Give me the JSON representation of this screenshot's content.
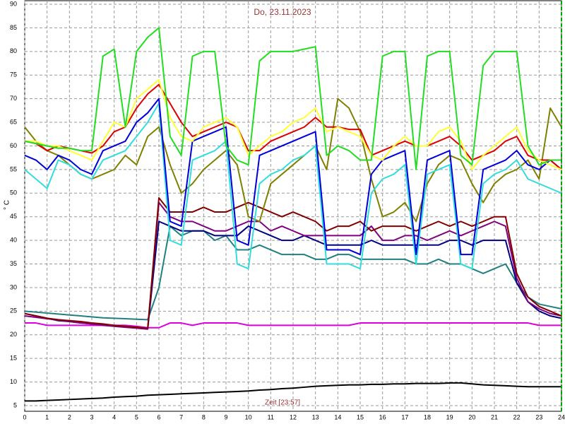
{
  "chart_data": {
    "type": "line",
    "title": "Do, 23.11.2023",
    "xlabel": "Zeit [23:57]",
    "ylabel": "° C",
    "x": [
      0,
      0.5,
      1,
      1.5,
      2,
      2.5,
      3,
      3.5,
      4,
      4.5,
      5,
      5.5,
      6,
      6.5,
      7,
      7.5,
      8,
      8.5,
      9,
      9.5,
      10,
      10.5,
      11,
      11.5,
      12,
      12.5,
      13,
      13.5,
      14,
      14.5,
      15,
      15.5,
      16,
      16.5,
      17,
      17.5,
      18,
      18.5,
      19,
      19.5,
      20,
      20.5,
      21,
      21.5,
      22,
      22.5,
      23,
      23.5,
      24
    ],
    "xlim": [
      0,
      24
    ],
    "xticks": [
      0,
      1,
      2,
      3,
      4,
      5,
      6,
      7,
      8,
      9,
      10,
      11,
      12,
      13,
      14,
      15,
      16,
      17,
      18,
      19,
      20,
      21,
      22,
      23,
      24
    ],
    "ylim": [
      5,
      90
    ],
    "yticks": [
      5,
      10,
      15,
      20,
      25,
      30,
      35,
      40,
      45,
      50,
      55,
      60,
      65,
      70,
      75,
      80,
      85,
      90
    ],
    "grid": true,
    "series": [
      {
        "color": "#000000",
        "values": [
          6,
          6,
          6.1,
          6.2,
          6.3,
          6.4,
          6.5,
          6.6,
          6.8,
          6.9,
          7,
          7.2,
          7.3,
          7.4,
          7.5,
          7.6,
          7.7,
          7.8,
          7.9,
          8,
          8.1,
          8.3,
          8.4,
          8.6,
          8.7,
          8.9,
          9.1,
          9.2,
          9.3,
          9.4,
          9.4,
          9.5,
          9.5,
          9.6,
          9.6,
          9.7,
          9.7,
          9.7,
          9.8,
          9.8,
          9.6,
          9.4,
          9.3,
          9.2,
          9.1,
          9,
          9,
          9,
          9
        ]
      },
      {
        "color": "#dd00dd",
        "values": [
          22.5,
          22.5,
          22,
          22,
          22,
          22,
          22,
          22,
          22,
          22,
          21.8,
          21.5,
          21.5,
          22.5,
          22.5,
          22,
          22.5,
          22.5,
          22.5,
          22.5,
          22,
          22,
          22,
          22,
          22,
          22,
          22,
          22,
          22,
          22,
          22.5,
          22.5,
          22.5,
          22.5,
          22.5,
          22.5,
          22.5,
          22.5,
          22.5,
          22.5,
          22.5,
          22.5,
          22.5,
          22.5,
          22.5,
          22.5,
          22,
          22,
          22
        ]
      },
      {
        "color": "#208080",
        "values": [
          25,
          24.8,
          24.6,
          24.4,
          24.2,
          24,
          23.8,
          23.6,
          23.5,
          23.4,
          23.3,
          23.2,
          30,
          43,
          41,
          42,
          42,
          40,
          41,
          38,
          38,
          39,
          38,
          37,
          37,
          37,
          36,
          36,
          37,
          37,
          36,
          36,
          36,
          36,
          36,
          35,
          35,
          36,
          35,
          35,
          34,
          33,
          34,
          35,
          31,
          28,
          26.5,
          26,
          25.5
        ]
      },
      {
        "color": "#000080",
        "values": [
          24.5,
          24,
          23.5,
          23,
          22.8,
          22.5,
          22.3,
          22.1,
          21.9,
          21.7,
          21.5,
          21.3,
          44,
          43,
          42,
          42,
          42,
          41,
          41,
          41,
          43,
          42,
          41,
          40,
          40,
          41,
          40,
          39,
          39,
          39,
          39,
          40,
          39,
          39,
          39,
          39,
          39,
          39,
          40,
          40,
          39,
          40,
          40,
          40,
          31,
          27,
          25,
          24,
          23.5
        ]
      },
      {
        "color": "#800080",
        "values": [
          24,
          23.7,
          23.4,
          23.1,
          22.8,
          22.5,
          22.3,
          22,
          21.8,
          21.6,
          21.4,
          21.2,
          48,
          45,
          44,
          44,
          43,
          42,
          42,
          43,
          44,
          44,
          42,
          43,
          42,
          41,
          41,
          41,
          41,
          41,
          41,
          43,
          40,
          40,
          41,
          41,
          40,
          41,
          42,
          41,
          42,
          43,
          44,
          43,
          32,
          27,
          25.5,
          24.5,
          24
        ]
      },
      {
        "color": "#800000",
        "values": [
          24.5,
          24,
          23.5,
          23.2,
          23,
          22.8,
          22.5,
          22.3,
          22,
          21.8,
          21.6,
          21.4,
          49,
          46,
          46,
          46,
          47,
          46,
          46,
          47,
          48,
          47,
          46,
          45,
          46,
          45,
          44,
          42,
          43,
          43,
          44,
          42,
          43,
          43,
          43,
          42,
          43,
          44,
          43,
          44,
          43,
          44,
          45,
          45,
          33,
          28,
          26,
          25,
          24
        ]
      },
      {
        "color": "#808000",
        "values": [
          64,
          61,
          59,
          58,
          56,
          54,
          53,
          54,
          55,
          58,
          56,
          62,
          64,
          56,
          50,
          52,
          55,
          57,
          59,
          56,
          45,
          44,
          52,
          54,
          56,
          58,
          60,
          55,
          70,
          68,
          63,
          53,
          45,
          46,
          48,
          44,
          52,
          56,
          58,
          57,
          52,
          48,
          52,
          54,
          55,
          57,
          53,
          68,
          64
        ]
      },
      {
        "color": "#33dddd",
        "values": [
          55,
          53,
          51,
          57,
          56,
          54,
          53,
          57,
          58,
          59,
          62,
          65,
          69,
          40,
          39,
          57,
          58,
          59,
          61,
          35,
          34,
          52,
          54,
          55,
          57,
          58,
          60,
          35,
          35,
          35,
          34,
          50,
          53,
          54,
          56,
          35,
          54,
          55,
          56,
          35,
          34,
          52,
          54,
          55,
          57,
          53,
          52,
          51,
          50
        ]
      },
      {
        "color": "#0000dd",
        "values": [
          58,
          57,
          55,
          58,
          57,
          55,
          54,
          59,
          60,
          61,
          65,
          67,
          70,
          44,
          43,
          61,
          62,
          63,
          64,
          40,
          39,
          58,
          59,
          60,
          61,
          62,
          63,
          38,
          38,
          38,
          37,
          54,
          57,
          58,
          59,
          37,
          57,
          58,
          59,
          37,
          37,
          55,
          56,
          57,
          59,
          56,
          55,
          57,
          55
        ]
      },
      {
        "color": "#dd0000",
        "values": [
          61,
          60.5,
          59,
          60,
          59.5,
          59,
          58.5,
          60,
          63,
          64,
          68,
          71,
          73,
          69,
          65,
          62,
          63,
          64,
          65,
          64,
          59,
          59,
          61,
          62,
          63,
          64,
          66,
          64,
          64,
          63.5,
          63.5,
          58,
          59,
          60,
          61,
          60,
          60,
          61,
          62,
          60,
          57,
          58,
          59,
          61,
          62,
          58,
          57,
          57,
          55
        ]
      },
      {
        "color": "#ffff33",
        "values": [
          61,
          61,
          60,
          60,
          59,
          58,
          57,
          61,
          65,
          64,
          70,
          72,
          74,
          66,
          62,
          61,
          64,
          65,
          66,
          64,
          58,
          60,
          62,
          63,
          65,
          66,
          68,
          63,
          64,
          63,
          62,
          58,
          57,
          60,
          62,
          60,
          60,
          63,
          64,
          61,
          55,
          58,
          60,
          62,
          64,
          59,
          57,
          56,
          55
        ]
      },
      {
        "color": "#22dd22",
        "values": [
          61,
          60.5,
          60,
          59.5,
          59.5,
          59,
          59,
          79,
          80.5,
          64,
          80,
          83,
          85,
          62,
          58,
          79,
          80,
          80,
          60,
          57,
          56,
          78,
          80,
          80,
          80,
          80.5,
          81,
          58,
          60,
          59,
          57,
          57,
          79,
          80,
          80,
          55,
          79,
          80,
          80,
          58,
          56,
          77,
          80,
          80,
          80,
          60,
          56,
          57,
          57
        ]
      }
    ]
  }
}
